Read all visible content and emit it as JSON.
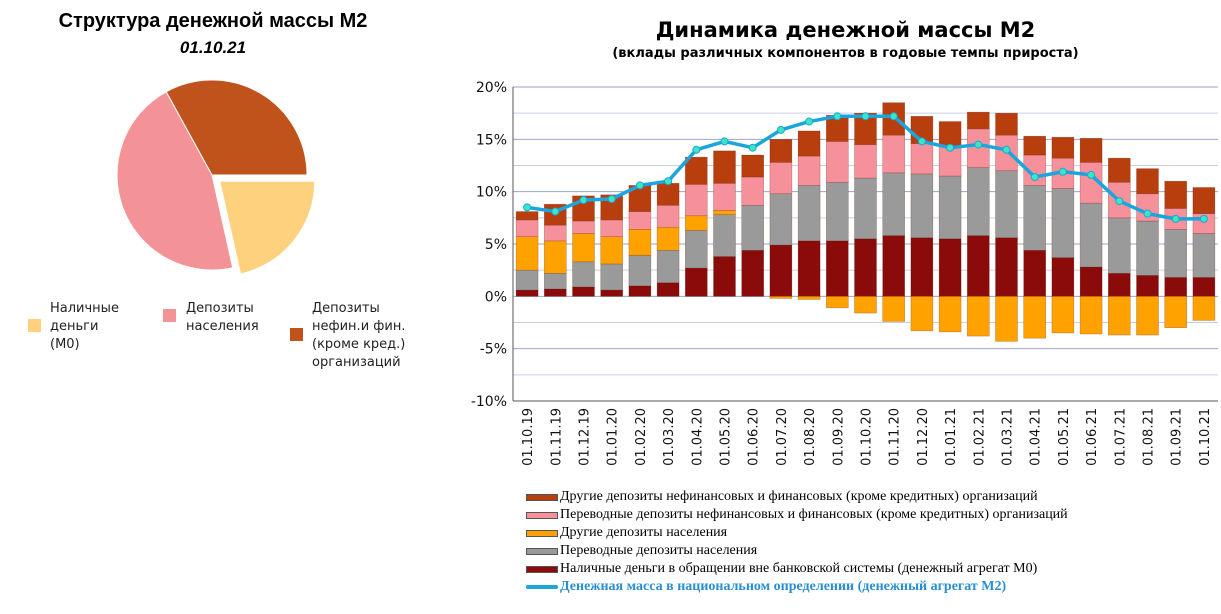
{
  "pie": {
    "title": "Структура денежной массы М2",
    "date": "01.10.21",
    "legend": [
      {
        "label": "Наличные деньги (М0)",
        "lines": [
          "Наличные",
          "деньги",
          "(М0)"
        ],
        "color": "#fdd17e"
      },
      {
        "label": "Депозиты населения",
        "lines": [
          "Депозиты",
          "населения"
        ],
        "color": "#f39398"
      },
      {
        "label": "Депозиты нефин.и фин. (кроме кред.) организаций",
        "lines": [
          "Депозиты",
          "нефин.и фин.",
          "(кроме кред.)",
          "организаций"
        ],
        "color": "#c0521c"
      }
    ]
  },
  "chart_data": [
    {
      "type": "pie",
      "title": "Структура денежной массы М2",
      "subtitle": "01.10.21",
      "slices": [
        {
          "label": "Наличные деньги (М0)",
          "value": 21.5,
          "color": "#fdd17e",
          "exploded": true
        },
        {
          "label": "Депозиты населения",
          "value": 45.5,
          "color": "#f39398",
          "exploded": false
        },
        {
          "label": "Депозиты нефин.и фин. (кроме кред.) организаций",
          "value": 33.0,
          "color": "#c0521c",
          "exploded": false
        }
      ]
    },
    {
      "type": "bar",
      "stacked": true,
      "title": "Динамика денежной массы М2",
      "subtitle": "(вклады различных компонентов в годовые темпы прироста)",
      "ylim": [
        -10,
        20
      ],
      "yticks": [
        "20%",
        "15%",
        "10%",
        "5%",
        "0%",
        "-5%",
        "-10%"
      ],
      "categories": [
        "01.10.19",
        "01.11.19",
        "01.12.19",
        "01.01.20",
        "01.02.20",
        "01.03.20",
        "01.04.20",
        "01.05.20",
        "01.06.20",
        "01.07.20",
        "01.08.20",
        "01.09.20",
        "01.10.20",
        "01.11.20",
        "01.12.20",
        "01.01.21",
        "01.02.21",
        "01.03.21",
        "01.04.21",
        "01.05.21",
        "01.06.21",
        "01.07.21",
        "01.08.21",
        "01.09.21",
        "01.10.21"
      ],
      "series": [
        {
          "name": "Наличные деньги в обращении вне банковской системы (денежный агрегат М0)",
          "color": "#8b0a0a",
          "values": [
            0.6,
            0.7,
            0.9,
            0.6,
            1.0,
            1.3,
            2.7,
            3.8,
            4.4,
            4.9,
            5.3,
            5.3,
            5.5,
            5.8,
            5.6,
            5.5,
            5.8,
            5.6,
            4.4,
            3.7,
            2.8,
            2.2,
            2.0,
            1.8,
            1.8
          ]
        },
        {
          "name": "Переводные депозиты населения",
          "color": "#9a9a9a",
          "values": [
            1.9,
            1.5,
            2.4,
            2.5,
            2.9,
            3.1,
            3.6,
            4.0,
            4.3,
            4.9,
            5.3,
            5.6,
            5.8,
            6.0,
            6.1,
            6.0,
            6.5,
            6.4,
            6.2,
            6.6,
            6.1,
            5.3,
            5.2,
            4.6,
            4.2
          ]
        },
        {
          "name": "Другие депозиты населения",
          "color": "#ffa200",
          "values": [
            3.2,
            3.1,
            2.7,
            2.6,
            2.5,
            2.2,
            1.4,
            0.4,
            0,
            -0.2,
            -0.3,
            -1.1,
            -1.6,
            -2.4,
            -3.3,
            -3.4,
            -3.8,
            -4.3,
            -4.0,
            -3.5,
            -3.6,
            -3.7,
            -3.7,
            -3.0,
            -2.3
          ]
        },
        {
          "name": "Переводные депозиты нефинансовых и финансовых (кроме кредитных) организаций",
          "color": "#f6909a",
          "values": [
            1.6,
            1.5,
            1.2,
            1.6,
            1.7,
            2.1,
            3.0,
            2.6,
            2.7,
            3.0,
            2.8,
            3.9,
            3.2,
            3.6,
            2.9,
            2.9,
            3.7,
            3.4,
            2.9,
            2.9,
            3.9,
            3.4,
            2.6,
            2.0,
            1.9
          ]
        },
        {
          "name": "Другие депозиты нефинансовых и финансовых (кроме кредитных) организаций",
          "color": "#b83e0e",
          "values": [
            0.8,
            2.0,
            2.4,
            2.4,
            2.5,
            2.1,
            2.6,
            3.1,
            2.1,
            2.2,
            2.4,
            2.5,
            3.0,
            3.1,
            2.6,
            2.3,
            1.6,
            2.1,
            1.8,
            2.0,
            2.3,
            2.3,
            2.4,
            2.6,
            2.5
          ]
        }
      ],
      "line": {
        "name": "Денежная масса в национальном определении (денежный агрегат М2)",
        "color": "#1aa6dc",
        "values": [
          8.5,
          8.1,
          9.2,
          9.3,
          10.6,
          11.0,
          14.0,
          14.8,
          14.2,
          15.9,
          16.7,
          17.2,
          17.2,
          17.2,
          14.8,
          14.2,
          14.5,
          14.0,
          11.4,
          11.9,
          11.6,
          9.1,
          7.9,
          7.4,
          7.4
        ]
      }
    }
  ]
}
